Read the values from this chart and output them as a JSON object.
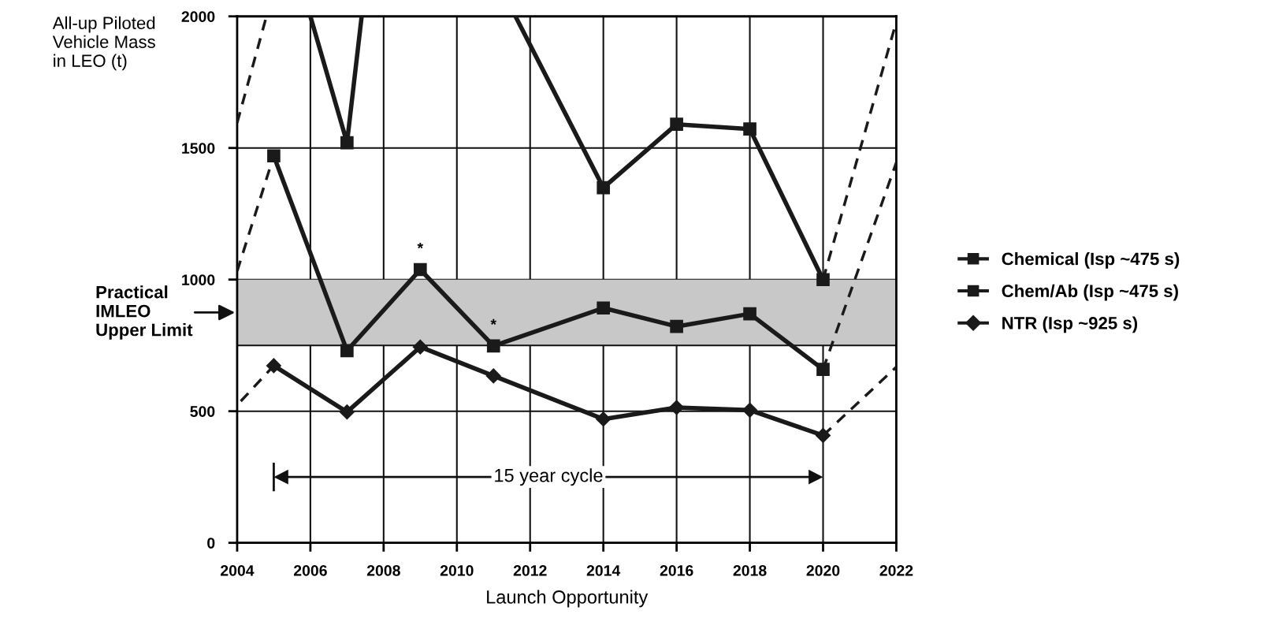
{
  "chart_data": {
    "type": "line",
    "ylabel": "All-up Piloted\nVehicle Mass\nin LEO (t)",
    "xlabel": "Launch Opportunity",
    "xlim": [
      2004,
      2022
    ],
    "xticks": [
      2004,
      2006,
      2008,
      2010,
      2012,
      2014,
      2016,
      2018,
      2020,
      2022
    ],
    "ylim": [
      0,
      2000
    ],
    "yticks": [
      0,
      500,
      1000,
      1500,
      2000
    ],
    "grid": true,
    "legend": "right",
    "series": [
      {
        "name": "Chemical (Isp ~475 s)",
        "color": "#1a1a1a",
        "marker": "square",
        "line_style": "solid",
        "x": [
          2006.0,
          2007,
          2007.4,
          2009.5,
          2011.6,
          2014,
          2016,
          2018,
          2020
        ],
        "values": [
          2000,
          1520,
          2000,
          null,
          2000,
          1349,
          1590,
          1572,
          1000
        ]
      },
      {
        "name": "Chem/Ab (Isp ~475 s)",
        "color": "#1a1a1a",
        "marker": "square",
        "line_style": "solid",
        "x": [
          2005,
          2007,
          2009,
          2011,
          2014,
          2016,
          2018,
          2020
        ],
        "values": [
          1470,
          730,
          1038,
          748,
          892,
          822,
          870,
          659
        ]
      },
      {
        "name": "NTR (Isp ~925 s)",
        "color": "#1a1a1a",
        "marker": "diamond",
        "line_style": "solid",
        "x": [
          2005,
          2007,
          2009,
          2011,
          2014,
          2016,
          2018,
          2020
        ],
        "values": [
          673,
          497,
          744,
          634,
          470,
          514,
          504,
          408
        ]
      },
      {
        "color": "#1a1a1a",
        "marker": "none",
        "line_style": "dashed",
        "x": [
          2004,
          2004.8
        ],
        "values": [
          1596,
          2000
        ]
      },
      {
        "color": "#1a1a1a",
        "marker": "none",
        "line_style": "dashed",
        "x": [
          2020,
          2022
        ],
        "values": [
          1000,
          1980
        ]
      },
      {
        "color": "#1a1a1a",
        "marker": "none",
        "line_style": "dashed",
        "x": [
          2004,
          2005
        ],
        "values": [
          1032,
          1470
        ]
      },
      {
        "color": "#1a1a1a",
        "marker": "none",
        "line_style": "dashed",
        "x": [
          2020,
          2022
        ],
        "values": [
          659,
          1445
        ]
      },
      {
        "color": "#1a1a1a",
        "marker": "none",
        "line_style": "dashed",
        "x": [
          2004.1,
          2005
        ],
        "values": [
          538,
          673
        ]
      },
      {
        "color": "#1a1a1a",
        "marker": "none",
        "line_style": "dashed",
        "x": [
          2020,
          2022
        ],
        "values": [
          408,
          668
        ]
      }
    ],
    "bands": [
      {
        "axis": "y",
        "from": 750,
        "to": 1000,
        "label": "Practical\nIMLEO\nUpper Limit",
        "color": "#c8c8c8"
      }
    ],
    "annotations": [
      {
        "text": "*",
        "x": 2009,
        "y": 1038
      },
      {
        "text": "*",
        "x": 2011,
        "y": 748
      },
      "15 year cycle"
    ]
  }
}
